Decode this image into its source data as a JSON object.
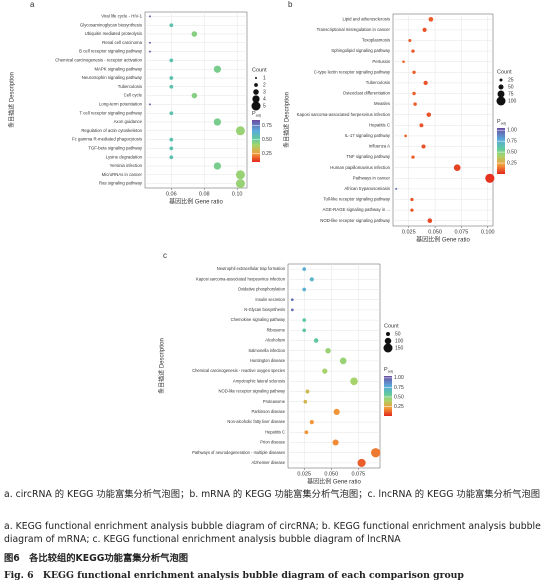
{
  "chart_data": [
    {
      "type": "bubble",
      "panel_label": "a",
      "x_label": "基因比例 Gene ratio",
      "y_label": "条目描述 Description",
      "categories": [
        "Viral life cycle - HIV-1",
        "Glycosaminoglycan biosynthesis",
        "Ubiquitin mediated proteolysis",
        "Renal cell carcinoma",
        "B cell receptor signaling pathway",
        "Chemical carcinogenesis - receptor activation",
        "MAPK signaling pathway",
        "Neurotrophin signaling pathway",
        "Tuberculosis",
        "Cell cycle",
        "Long-term potentiation",
        "T cell receptor signaling pathway",
        "Axon guidance",
        "Regulation of actin cytoskeleton",
        "Fc gamma R-mediated phagocytosis",
        "TGF-beta signaling pathway",
        "Lysine degradation",
        "Yersinia infection",
        "MicroRNAs in cancer",
        "Ras signaling pathway"
      ],
      "values": [
        0.047,
        0.06,
        0.074,
        0.047,
        0.047,
        0.06,
        0.088,
        0.06,
        0.06,
        0.074,
        0.047,
        0.06,
        0.088,
        0.102,
        0.06,
        0.06,
        0.06,
        0.088,
        0.102,
        0.102
      ],
      "counts": [
        1,
        2,
        3,
        1,
        1,
        2,
        4,
        2,
        2,
        3,
        1,
        2,
        4,
        5,
        2,
        2,
        2,
        4,
        5,
        5
      ],
      "padj": [
        0.8,
        0.55,
        0.45,
        0.8,
        0.8,
        0.55,
        0.47,
        0.55,
        0.55,
        0.45,
        0.8,
        0.55,
        0.47,
        0.42,
        0.55,
        0.55,
        0.55,
        0.47,
        0.42,
        0.42
      ],
      "xlim": [
        0.044,
        0.106
      ],
      "xticks": [
        0.06,
        0.08,
        {
          "value": 0.1,
          "label": "0.10"
        }
      ],
      "size_title": "Count",
      "size_legend": [
        1,
        2,
        3,
        4,
        5
      ],
      "color_title": "P",
      "color_title_sub": "adj",
      "colorlim": [
        0.1,
        0.85
      ],
      "colorticks": [
        0.25,
        {
          "value": 0.5,
          "label": "0.50"
        },
        0.75
      ],
      "grid": true
    },
    {
      "type": "bubble",
      "panel_label": "b",
      "x_label": "基因比例 Gene ratio",
      "y_label": "条目描述 Description",
      "categories": [
        "Lipid and atherosclerosis",
        "Transcriptional misregulation in cancer",
        "Toxoplasmosis",
        "Sphingolipid signaling pathway",
        "Pertussis",
        "C-type lectin receptor signaling pathway",
        "Tuberculosis",
        "Osteoclast differentiation",
        "Measles",
        "Kaposi sarcoma-associated herpesvirus infection",
        "Hepatitis C",
        "IL-17 signaling pathway",
        "Influenza A",
        "TNF signaling pathway",
        "Human papillomavirus infection",
        "Pathways in cancer",
        "African trypanosomiasis",
        "Toll-like receptor signaling pathway",
        "AGE-RAGE signaling pathway in ...",
        "NOD-like receptor signaling pathway"
      ],
      "values": [
        0.046,
        0.04,
        0.026,
        0.029,
        0.02,
        0.03,
        0.041,
        0.03,
        0.031,
        0.044,
        0.037,
        0.022,
        0.039,
        0.029,
        0.071,
        0.102,
        0.013,
        0.028,
        0.028,
        0.045
      ],
      "counts": [
        46,
        40,
        26,
        29,
        20,
        30,
        41,
        30,
        31,
        44,
        37,
        22,
        39,
        29,
        71,
        102,
        13,
        28,
        28,
        45
      ],
      "padj": [
        0.1,
        0.08,
        0.1,
        0.08,
        0.12,
        0.1,
        0.08,
        0.1,
        0.1,
        0.08,
        0.08,
        0.12,
        0.08,
        0.1,
        0.05,
        0.02,
        0.95,
        0.08,
        0.08,
        0.06
      ],
      "xlim": [
        0.01,
        0.105
      ],
      "xticks": [
        0.025,
        {
          "value": 0.05,
          "label": "0.050"
        },
        0.075,
        {
          "value": 0.1,
          "label": "0.100"
        }
      ],
      "size_title": "Count",
      "size_legend": [
        25,
        50,
        75,
        100
      ],
      "color_title": "P",
      "color_title_sub": "adj",
      "colorlim": [
        0,
        1.05
      ],
      "colorticks": [
        0.25,
        {
          "value": 0.5,
          "label": "0.50"
        },
        0.75,
        {
          "value": 1,
          "label": "1.00"
        }
      ],
      "grid": true
    },
    {
      "type": "bubble",
      "panel_label": "c",
      "x_label": "基因比例 Gene ratio",
      "y_label": "条目描述 Description",
      "categories": [
        "Neutrophil extracellular trap formation",
        "Kaposi sarcoma-associated herpesvirus infection",
        "Oxidative phosphorylation",
        "Insulin secretion",
        "N-Glycan biosynthesis",
        "Chemokine signaling pathway",
        "Ribosome",
        "Alcoholism",
        "Salmonella infection",
        "Huntington disease",
        "Chemical carcinogenesis - reactive oxygen species",
        "Amyotrophic lateral sclerosis",
        "NOD-like receptor signaling pathway",
        "Proteasome",
        "Parkinson disease",
        "Non-alcoholic fatty liver disease",
        "Hepatitis C",
        "Prion disease",
        "Pathways of neurodegeneration - multiple diseases",
        "Alzheimer disease"
      ],
      "values": [
        0.025,
        0.032,
        0.025,
        0.014,
        0.014,
        0.025,
        0.025,
        0.036,
        0.047,
        0.061,
        0.044,
        0.071,
        0.028,
        0.026,
        0.055,
        0.032,
        0.027,
        0.054,
        0.091,
        0.078
      ],
      "counts": [
        43,
        54,
        43,
        24,
        24,
        43,
        43,
        61,
        80,
        104,
        75,
        121,
        48,
        44,
        94,
        54,
        46,
        92,
        155,
        133
      ],
      "padj": [
        0.75,
        0.72,
        0.75,
        0.95,
        0.95,
        0.6,
        0.6,
        0.58,
        0.45,
        0.45,
        0.42,
        0.42,
        0.32,
        0.3,
        0.2,
        0.2,
        0.2,
        0.18,
        0.15,
        0.1
      ],
      "xlim": [
        0.01,
        0.095
      ],
      "xticks": [
        0.025,
        {
          "value": 0.05,
          "label": "0.050"
        },
        0.075
      ],
      "size_title": "Count",
      "size_legend": [
        50,
        100,
        150
      ],
      "color_title": "P",
      "color_title_sub": "adj",
      "colorlim": [
        0,
        1.05
      ],
      "colorticks": [
        0.25,
        {
          "value": 0.5,
          "label": "0.50"
        },
        0.75,
        {
          "value": 1,
          "label": "1.00"
        }
      ],
      "grid": true
    }
  ],
  "captions": {
    "zh": "a. circRNA 的 KEGG 功能富集分析气泡图；b. mRNA 的 KEGG 功能富集分析气泡图；c. lncRNA 的 KEGG 功能富集分析气泡图",
    "en": "a. KEGG functional enrichment analysis bubble diagram of circRNA; b. KEGG functional enrichment analysis bubble diagram of mRNA; c. KEGG functional enrichment analysis bubble diagram of lncRNA",
    "figure_zh": "图6　各比较组的KEGG功能富集分析气泡图",
    "figure_en": "Fig. 6　KEGG functional enrichment analysis bubble diagram of each comparison group"
  }
}
